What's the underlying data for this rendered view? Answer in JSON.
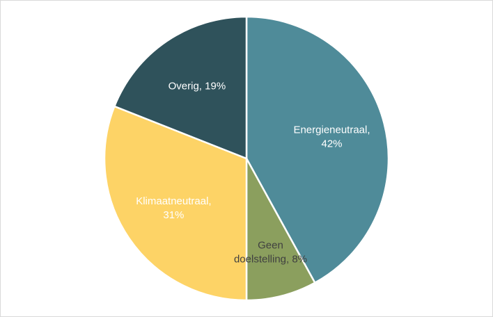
{
  "chart_data": {
    "type": "pie",
    "title": "",
    "start_angle_deg": 0,
    "direction": "clockwise",
    "slices": [
      {
        "label_lines": [
          "Energieneutraal,",
          "42%"
        ],
        "label": "Energieneutraal",
        "value": 42,
        "color": "#4f8b99",
        "text_color": "#ffffff"
      },
      {
        "label_lines": [
          "Geen",
          "doelstelling, 8%"
        ],
        "label": "Geen doelstelling",
        "value": 8,
        "color": "#8b9f5e",
        "text_color": "#404040"
      },
      {
        "label_lines": [
          "Klimaatneutraal,",
          "31%"
        ],
        "label": "Klimaatneutraal",
        "value": 31,
        "color": "#fdd366",
        "text_color": "#ffffff"
      },
      {
        "label_lines": [
          "Overig, 19%"
        ],
        "label": "Overig",
        "value": 19,
        "color": "#2f525b",
        "text_color": "#ffffff"
      }
    ]
  }
}
